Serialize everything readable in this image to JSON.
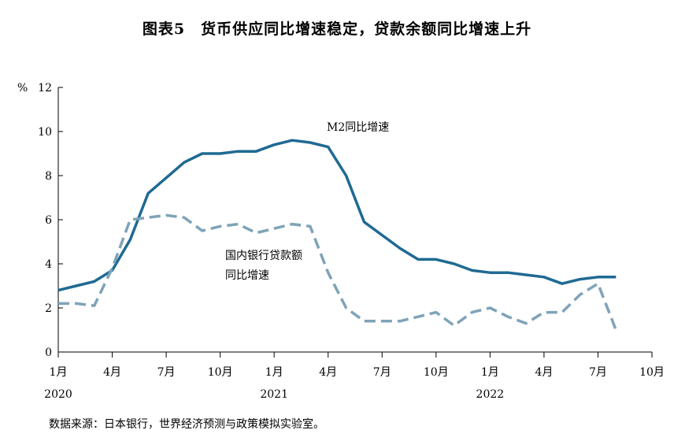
{
  "title": "图表5　货币供应同比增速稳定，贷款余额同比增速上升",
  "source": "数据来源：日本银行，世界经济预测与政策模拟实验室。",
  "chart_data": {
    "type": "line",
    "y_unit": "%",
    "ylim": [
      0,
      12
    ],
    "y_ticks": [
      0,
      2,
      4,
      6,
      8,
      10,
      12
    ],
    "grid": false,
    "x_ticks": [
      {
        "month": "1月",
        "year": "2020"
      },
      {
        "month": "4月",
        "year": ""
      },
      {
        "month": "7月",
        "year": ""
      },
      {
        "month": "10月",
        "year": ""
      },
      {
        "month": "1月",
        "year": "2021"
      },
      {
        "month": "4月",
        "year": ""
      },
      {
        "month": "7月",
        "year": ""
      },
      {
        "month": "10月",
        "year": ""
      },
      {
        "month": "1月",
        "year": "2022"
      },
      {
        "month": "4月",
        "year": ""
      },
      {
        "month": "7月",
        "year": ""
      },
      {
        "month": "10月",
        "year": ""
      }
    ],
    "x": [
      "2020-01",
      "2020-02",
      "2020-03",
      "2020-04",
      "2020-05",
      "2020-06",
      "2020-07",
      "2020-08",
      "2020-09",
      "2020-10",
      "2020-11",
      "2020-12",
      "2021-01",
      "2021-02",
      "2021-03",
      "2021-04",
      "2021-05",
      "2021-06",
      "2021-07",
      "2021-08",
      "2021-09",
      "2021-10",
      "2021-11",
      "2021-12",
      "2022-01",
      "2022-02",
      "2022-03",
      "2022-04",
      "2022-05",
      "2022-06",
      "2022-07",
      "2022-08"
    ],
    "series": [
      {
        "name": "M2同比增速",
        "color": "#1f6a93",
        "style": "solid",
        "values": [
          2.8,
          3.0,
          3.2,
          3.7,
          5.1,
          7.2,
          7.9,
          8.6,
          9.0,
          9.0,
          9.1,
          9.1,
          9.4,
          9.6,
          9.5,
          9.3,
          8.0,
          5.9,
          5.3,
          4.7,
          4.2,
          4.2,
          4.0,
          3.7,
          3.6,
          3.6,
          3.5,
          3.4,
          3.1,
          3.3,
          3.4,
          3.4
        ]
      },
      {
        "name": "国内银行贷款额同比增速",
        "name_lines": [
          "国内银行贷款额",
          "同比增速"
        ],
        "color": "#7fa3b8",
        "style": "dashed",
        "values": [
          2.2,
          2.2,
          2.1,
          3.8,
          6.0,
          6.1,
          6.2,
          6.1,
          5.5,
          5.7,
          5.8,
          5.4,
          5.6,
          5.8,
          5.7,
          3.6,
          2.0,
          1.4,
          1.4,
          1.4,
          1.6,
          1.8,
          1.2,
          1.8,
          2.0,
          1.6,
          1.3,
          1.8,
          1.8,
          2.6,
          3.1,
          1.0
        ]
      }
    ]
  }
}
